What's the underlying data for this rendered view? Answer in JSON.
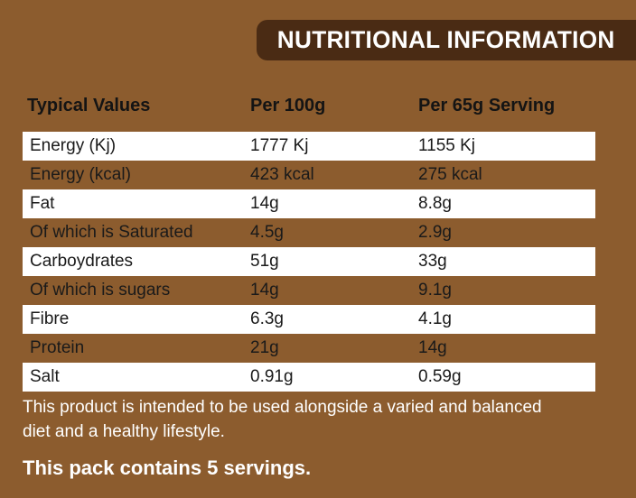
{
  "header": {
    "title": "NUTRITIONAL INFORMATION"
  },
  "table": {
    "columns": [
      "Typical Values",
      "Per 100g",
      "Per 65g Serving"
    ],
    "rows": [
      {
        "label": "Energy  (Kj)",
        "per100": "1777 Kj",
        "serving": "1155 Kj"
      },
      {
        "label": "Energy (kcal)",
        "per100": "423 kcal",
        "serving": "275 kcal"
      },
      {
        "label": "Fat",
        "per100": "14g",
        "serving": "8.8g"
      },
      {
        "label": "Of which is Saturated",
        "per100": "4.5g",
        "serving": "2.9g"
      },
      {
        "label": "Carboydrates",
        "per100": "51g",
        "serving": "33g"
      },
      {
        "label": "Of which is sugars",
        "per100": "14g",
        "serving": "9.1g"
      },
      {
        "label": "Fibre",
        "per100": "6.3g",
        "serving": "4.1g"
      },
      {
        "label": "Protein",
        "per100": "21g",
        "serving": "14g"
      },
      {
        "label": "Salt",
        "per100": "0.91g",
        "serving": "0.59g"
      }
    ]
  },
  "footer": {
    "disclaimer": "This product is intended to be used alongside a varied and balanced diet and a healthy lifestyle.",
    "servings": "This pack contains 5 servings."
  },
  "colors": {
    "background": "#8c5c2e",
    "banner": "#4a2b14",
    "row_white": "#ffffff",
    "text_dark": "#1a1a1a",
    "text_light": "#ffffff"
  }
}
